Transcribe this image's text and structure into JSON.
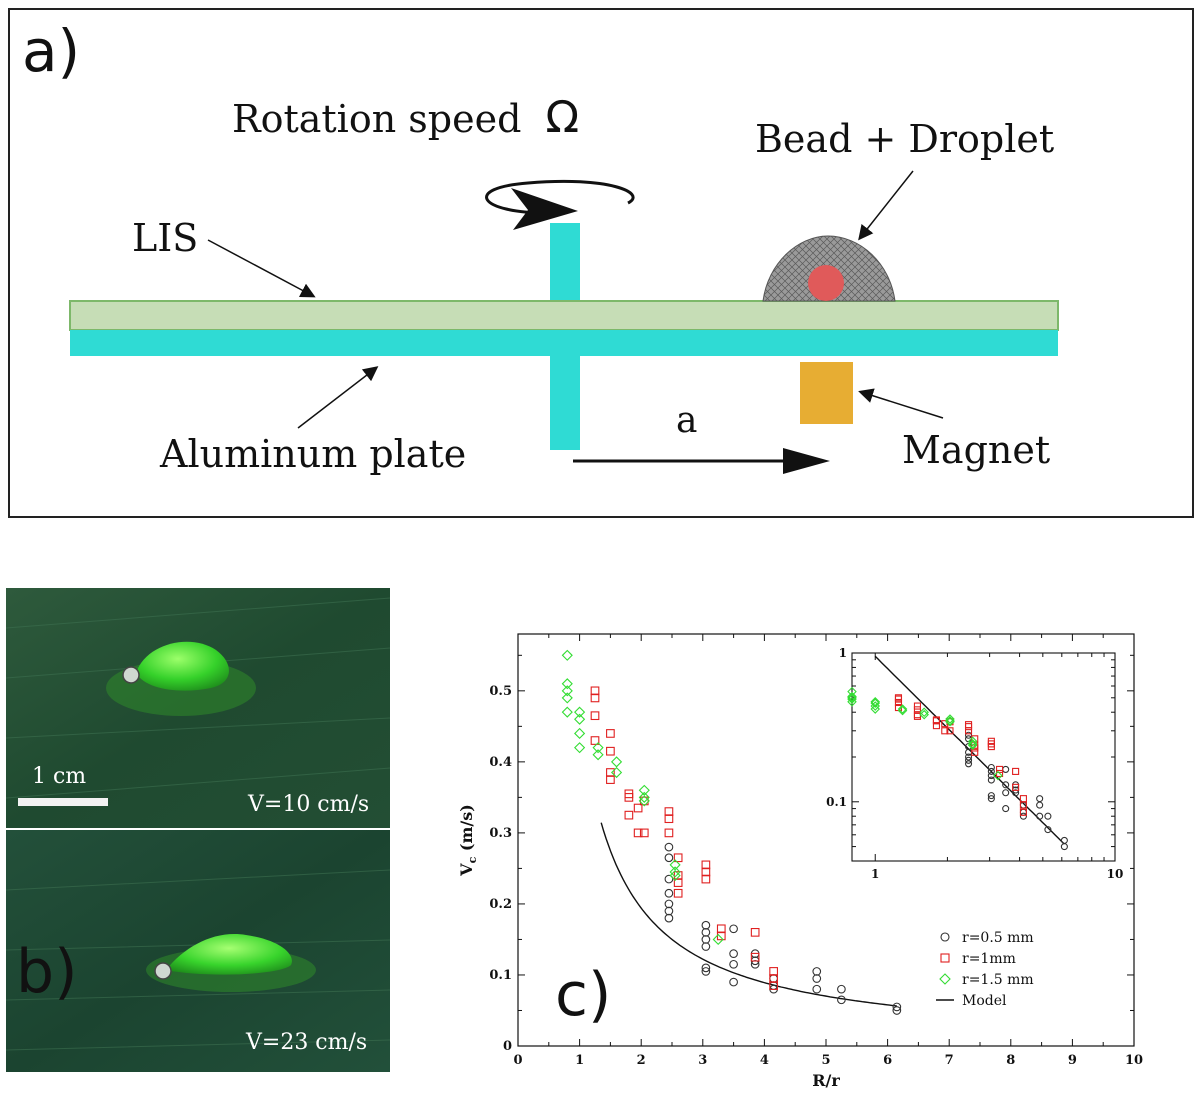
{
  "panel_a": {
    "label": "a)",
    "rotation_label": "Rotation speed",
    "omega": "Ω",
    "bead_label": "Bead + Droplet",
    "lis_label": "LIS",
    "plate_label": "Aluminum plate",
    "magnet_label": "Magnet",
    "distance_label": "a",
    "colors": {
      "lis": "#c6ddb6",
      "plate": "#2fdbd4",
      "axle": "#2fdbd4",
      "magnet": "#e7ad33",
      "bead": "#e05a5a",
      "droplet": "#8a8a8a"
    }
  },
  "panel_b": {
    "label": "b)",
    "scale_label": "1 cm",
    "top_speed": "V=10 cm/s",
    "bottom_speed": "V=23 cm/s"
  },
  "panel_c": {
    "label": "c)"
  },
  "chart_data": {
    "type": "scatter",
    "xlabel": "R/r",
    "ylabel_main": "V",
    "ylabel_sub": "c",
    "ylabel_unit": " (m/s)",
    "xlim": [
      0,
      10
    ],
    "ylim": [
      0,
      0.58
    ],
    "xticks": [
      "0",
      "1",
      "2",
      "3",
      "4",
      "5",
      "6",
      "7",
      "8",
      "9",
      "10"
    ],
    "yticks": [
      "0",
      "0.1",
      "0.2",
      "0.3",
      "0.4",
      "0.5"
    ],
    "legend": [
      "r=0.5 mm",
      "r=1mm",
      "r=1.5 mm",
      "Model"
    ],
    "series": [
      {
        "name": "r=0.5 mm",
        "marker": "circle",
        "color": "#333333",
        "points": [
          [
            2.45,
            0.28
          ],
          [
            2.45,
            0.265
          ],
          [
            2.45,
            0.235
          ],
          [
            2.45,
            0.215
          ],
          [
            2.45,
            0.2
          ],
          [
            2.45,
            0.19
          ],
          [
            2.45,
            0.18
          ],
          [
            3.05,
            0.17
          ],
          [
            3.05,
            0.16
          ],
          [
            3.05,
            0.15
          ],
          [
            3.05,
            0.14
          ],
          [
            3.05,
            0.11
          ],
          [
            3.05,
            0.105
          ],
          [
            3.5,
            0.165
          ],
          [
            3.5,
            0.13
          ],
          [
            3.5,
            0.115
          ],
          [
            3.5,
            0.09
          ],
          [
            3.85,
            0.13
          ],
          [
            3.85,
            0.12
          ],
          [
            3.85,
            0.115
          ],
          [
            4.15,
            0.095
          ],
          [
            4.15,
            0.085
          ],
          [
            4.15,
            0.08
          ],
          [
            4.85,
            0.105
          ],
          [
            4.85,
            0.095
          ],
          [
            4.85,
            0.08
          ],
          [
            5.25,
            0.08
          ],
          [
            5.25,
            0.065
          ],
          [
            6.15,
            0.055
          ],
          [
            6.15,
            0.05
          ]
        ]
      },
      {
        "name": "r=1mm",
        "marker": "square",
        "color": "#e02020",
        "points": [
          [
            1.25,
            0.5
          ],
          [
            1.25,
            0.49
          ],
          [
            1.25,
            0.465
          ],
          [
            1.25,
            0.43
          ],
          [
            1.5,
            0.44
          ],
          [
            1.5,
            0.415
          ],
          [
            1.5,
            0.385
          ],
          [
            1.5,
            0.375
          ],
          [
            1.8,
            0.355
          ],
          [
            1.8,
            0.35
          ],
          [
            1.8,
            0.325
          ],
          [
            1.95,
            0.335
          ],
          [
            1.95,
            0.3
          ],
          [
            2.05,
            0.345
          ],
          [
            2.05,
            0.3
          ],
          [
            2.45,
            0.33
          ],
          [
            2.45,
            0.32
          ],
          [
            2.45,
            0.3
          ],
          [
            2.6,
            0.265
          ],
          [
            2.6,
            0.24
          ],
          [
            2.6,
            0.23
          ],
          [
            2.6,
            0.215
          ],
          [
            3.05,
            0.255
          ],
          [
            3.05,
            0.245
          ],
          [
            3.05,
            0.235
          ],
          [
            3.3,
            0.165
          ],
          [
            3.3,
            0.155
          ],
          [
            3.85,
            0.16
          ],
          [
            3.85,
            0.125
          ],
          [
            4.15,
            0.105
          ],
          [
            4.15,
            0.095
          ],
          [
            4.15,
            0.085
          ]
        ]
      },
      {
        "name": "r=1.5 mm",
        "marker": "diamond",
        "color": "#33dd33",
        "points": [
          [
            0.8,
            0.55
          ],
          [
            0.8,
            0.51
          ],
          [
            0.8,
            0.5
          ],
          [
            0.8,
            0.49
          ],
          [
            0.8,
            0.47
          ],
          [
            1.0,
            0.47
          ],
          [
            1.0,
            0.46
          ],
          [
            1.0,
            0.44
          ],
          [
            1.0,
            0.42
          ],
          [
            1.3,
            0.42
          ],
          [
            1.3,
            0.41
          ],
          [
            1.6,
            0.4
          ],
          [
            1.6,
            0.385
          ],
          [
            2.05,
            0.36
          ],
          [
            2.05,
            0.35
          ],
          [
            2.05,
            0.345
          ],
          [
            2.55,
            0.255
          ],
          [
            2.55,
            0.245
          ],
          [
            2.55,
            0.24
          ],
          [
            3.25,
            0.15
          ]
        ]
      }
    ],
    "model": {
      "name": "Model",
      "k": 0.32,
      "exponent": -1.0,
      "x_start": 1.35,
      "x_end": 6.15
    },
    "inset": {
      "xscale": "log",
      "yscale": "log",
      "xlim": [
        0.8,
        10
      ],
      "ylim": [
        0.04,
        1
      ],
      "xticks": [
        "1",
        "10"
      ],
      "yticks": [
        "0.1",
        "1"
      ]
    }
  }
}
